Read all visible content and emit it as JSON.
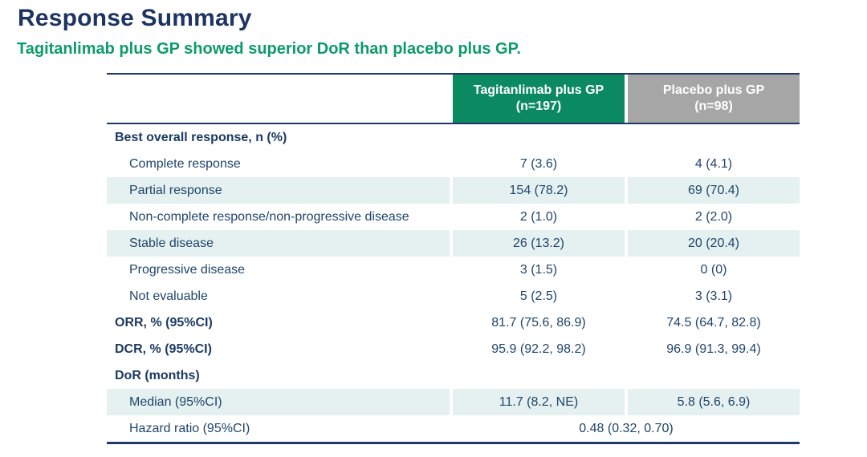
{
  "title": "Response Summary",
  "subtitle": "Tagitanlimab plus GP showed superior DoR than placebo plus GP.",
  "colors": {
    "title_navy": "#1d3461",
    "subtitle_green": "#0d9b68",
    "header_green": "#0b8a62",
    "header_gray": "#a6a6a6",
    "stripe_teal": "#e4f1f0",
    "rule_navy": "#1f3864",
    "body_text": "#21456b"
  },
  "table": {
    "columns": [
      {
        "name": "Tagitanlimab plus GP",
        "n": "(n=197)"
      },
      {
        "name": "Placebo plus GP",
        "n": "(n=98)"
      }
    ],
    "rows": [
      {
        "label": "Best overall response, n (%)",
        "style": "section",
        "striped": false,
        "values": [
          "",
          ""
        ]
      },
      {
        "label": "Complete response",
        "style": "item",
        "striped": false,
        "values": [
          "7 (3.6)",
          "4 (4.1)"
        ]
      },
      {
        "label": "Partial response",
        "style": "item",
        "striped": true,
        "values": [
          "154 (78.2)",
          "69 (70.4)"
        ]
      },
      {
        "label": "Non-complete response/non-progressive disease",
        "style": "item",
        "striped": false,
        "values": [
          "2 (1.0)",
          "2 (2.0)"
        ]
      },
      {
        "label": "Stable disease",
        "style": "item",
        "striped": true,
        "values": [
          "26 (13.2)",
          "20 (20.4)"
        ]
      },
      {
        "label": "Progressive disease",
        "style": "item",
        "striped": false,
        "values": [
          "3 (1.5)",
          "0 (0)"
        ]
      },
      {
        "label": "Not evaluable",
        "style": "item",
        "striped": false,
        "values": [
          "5 (2.5)",
          "3 (3.1)"
        ]
      },
      {
        "label": "ORR, % (95%CI)",
        "style": "section",
        "striped": false,
        "values": [
          "81.7 (75.6, 86.9)",
          "74.5 (64.7, 82.8)"
        ]
      },
      {
        "label": "DCR, % (95%CI)",
        "style": "section",
        "striped": false,
        "values": [
          "95.9 (92.2, 98.2)",
          "96.9 (91.3, 99.4)"
        ]
      },
      {
        "label": "DoR (months)",
        "style": "section",
        "striped": false,
        "values": [
          "",
          ""
        ]
      },
      {
        "label": "Median (95%CI)",
        "style": "item",
        "striped": true,
        "values": [
          "11.7 (8.2, NE)",
          "5.8 (5.6, 6.9)"
        ]
      },
      {
        "label": "Hazard ratio (95%CI)",
        "style": "item",
        "striped": false,
        "merged": "0.48 (0.32, 0.70)"
      }
    ]
  }
}
